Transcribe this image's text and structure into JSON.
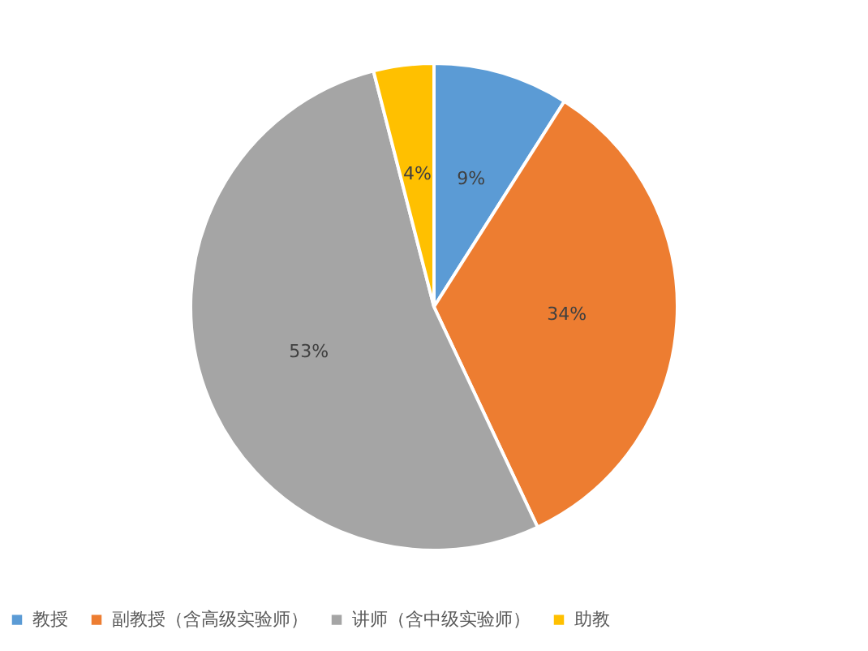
{
  "chart_data": {
    "type": "pie",
    "categories": [
      "教授",
      "副教授（含高级实验师）",
      "讲师（含中级实验师）",
      "助教"
    ],
    "values": [
      9,
      34,
      53,
      4
    ],
    "colors": [
      "#5b9bd5",
      "#ed7d31",
      "#a5a5a5",
      "#ffc000"
    ],
    "value_labels": [
      "9%",
      "34%",
      "53%",
      "4%"
    ],
    "legend": "bottom"
  }
}
